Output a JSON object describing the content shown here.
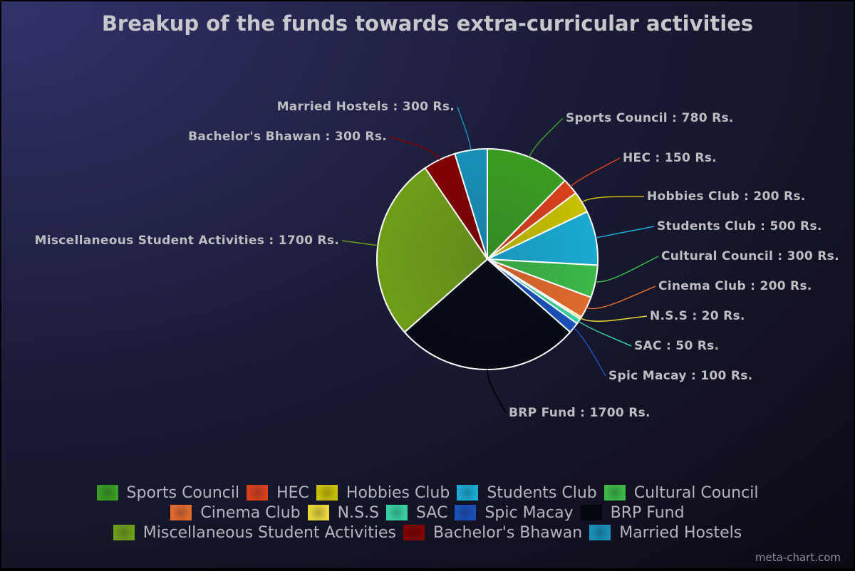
{
  "chart_data": {
    "type": "pie",
    "title": "Breakup of the funds towards extra-curricular activities",
    "unit": "Rs.",
    "slices": [
      {
        "label": "Sports Council",
        "value": 780,
        "color": "#3a9c22",
        "data_label": "Sports Council : 780 Rs."
      },
      {
        "label": "HEC",
        "value": 150,
        "color": "#d8401c",
        "data_label": "HEC : 150 Rs."
      },
      {
        "label": "Hobbies Club",
        "value": 200,
        "color": "#c8c000",
        "data_label": "Hobbies Club : 200 Rs."
      },
      {
        "label": "Students Club",
        "value": 500,
        "color": "#1aaad0",
        "data_label": "Students Club : 500 Rs."
      },
      {
        "label": "Cultural Council",
        "value": 300,
        "color": "#3cb848",
        "data_label": "Cultural Council : 300 Rs."
      },
      {
        "label": "Cinema Club",
        "value": 200,
        "color": "#e06a2c",
        "data_label": "Cinema Club : 200 Rs."
      },
      {
        "label": "N.S.S",
        "value": 20,
        "color": "#e8d838",
        "data_label": "N.S.S : 20 Rs."
      },
      {
        "label": "SAC",
        "value": 50,
        "color": "#38d0a0",
        "data_label": "SAC : 50 Rs."
      },
      {
        "label": "Spic Macay",
        "value": 100,
        "color": "#1a50b8",
        "data_label": "Spic Macay : 100 Rs."
      },
      {
        "label": "BRP Fund",
        "value": 1700,
        "color": "#050a14",
        "data_label": "BRP Fund : 1700 Rs."
      },
      {
        "label": "Miscellaneous Student Activities",
        "value": 1700,
        "color": "#6e9e18",
        "data_label": "Miscellaneous Student Activities : 1700 Rs."
      },
      {
        "label": "Bachelor's Bhawan",
        "value": 300,
        "color": "#800000",
        "data_label": "Bachelor's Bhawan : 300 Rs."
      },
      {
        "label": "Married Hostels",
        "value": 300,
        "color": "#1890b8",
        "data_label": "Married Hostels : 300 Rs."
      }
    ],
    "start": "top",
    "direction": "clockwise",
    "legend_placement": "bottom"
  },
  "credit": "meta-chart.com"
}
